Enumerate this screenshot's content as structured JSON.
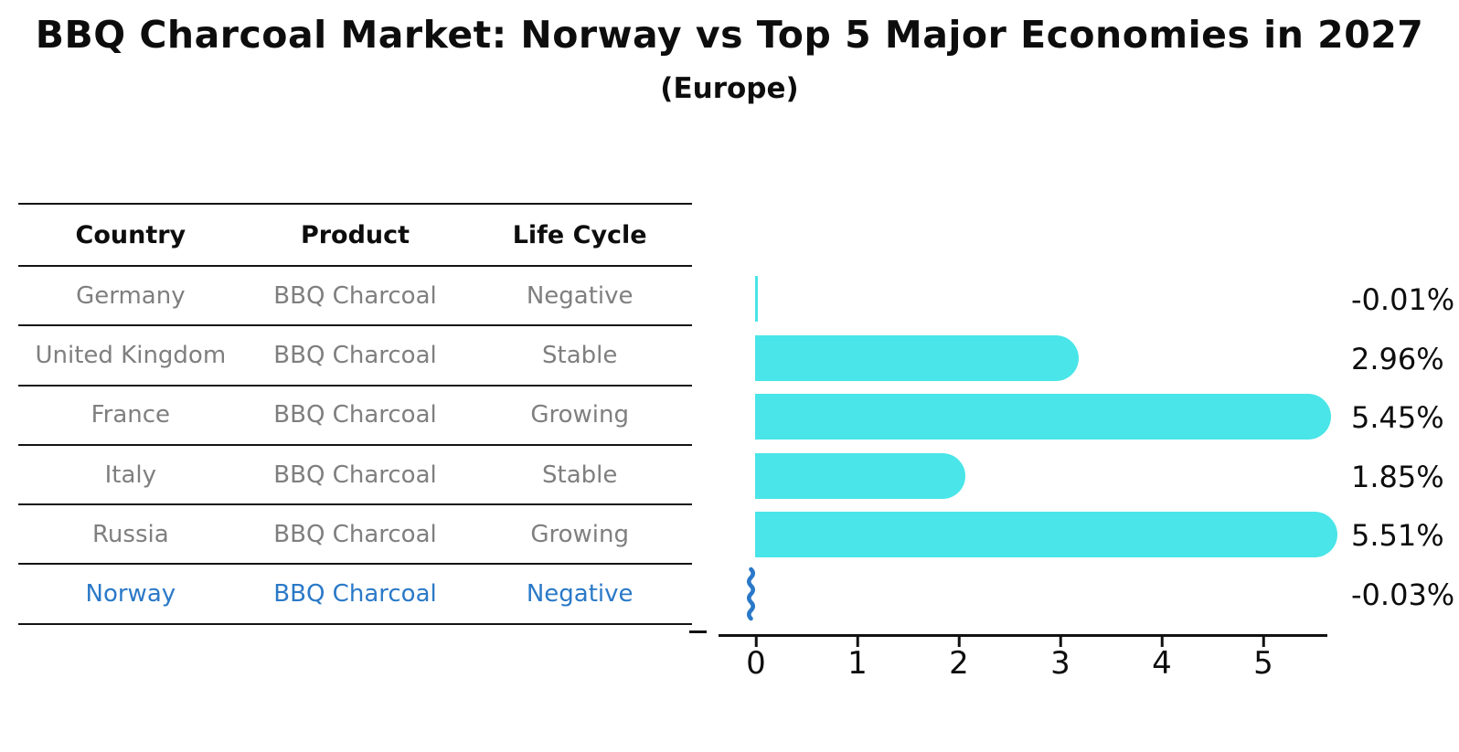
{
  "title": "BBQ Charcoal Market: Norway vs Top 5 Major Economies in 2027",
  "subtitle": "(Europe)",
  "table": {
    "headers": [
      "Country",
      "Product",
      "Life Cycle"
    ],
    "rows": [
      {
        "country": "Germany",
        "product": "BBQ Charcoal",
        "life_cycle": "Negative"
      },
      {
        "country": "United Kingdom",
        "product": "BBQ Charcoal",
        "life_cycle": "Stable"
      },
      {
        "country": "France",
        "product": "BBQ Charcoal",
        "life_cycle": "Growing"
      },
      {
        "country": "Italy",
        "product": "BBQ Charcoal",
        "life_cycle": "Stable"
      },
      {
        "country": "Russia",
        "product": "BBQ Charcoal",
        "life_cycle": "Growing"
      },
      {
        "country": "Norway",
        "product": "BBQ Charcoal",
        "life_cycle": "Negative"
      }
    ],
    "highlighted_row": "Norway"
  },
  "chart_data": {
    "type": "bar",
    "orientation": "horizontal",
    "categories": [
      "Germany",
      "United Kingdom",
      "France",
      "Italy",
      "Russia",
      "Norway"
    ],
    "values": [
      -0.01,
      2.96,
      5.45,
      1.85,
      5.51,
      -0.03
    ],
    "value_labels": [
      "-0.01%",
      "2.96%",
      "5.45%",
      "1.85%",
      "5.51%",
      "-0.03%"
    ],
    "xticks": [
      "0",
      "1",
      "2",
      "3",
      "4",
      "5"
    ],
    "xlim": [
      0,
      5.65
    ],
    "grid": false,
    "legend": false,
    "bar_color": "#49e5e8",
    "highlight_color": "#2a79c8",
    "highlight_index": 5
  },
  "colors": {
    "background": "#ffffff",
    "title_text": "#0d0d0d",
    "table_text": "#7f7f7f",
    "table_header_text": "#0d0d0d",
    "highlight_text": "#2a79c8",
    "bar_cyan": "#49e5e8",
    "norway_blue": "#2a79c8",
    "axis": "#111111"
  }
}
